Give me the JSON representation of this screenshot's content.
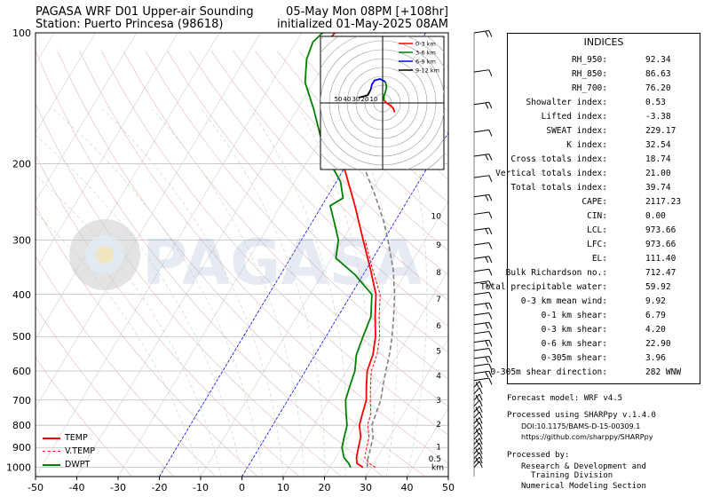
{
  "header": {
    "title_left": "PAGASA WRF D01 Upper-air Sounding",
    "station": "Station: Puerto Princesa (98618)",
    "valid_time": "05-May Mon 08PM [+108hr]",
    "init_time": "initialized 01-May-2025 08AM"
  },
  "watermark": "PAGASA",
  "chart_data": {
    "type": "line",
    "x_ticks": [
      "-50",
      "-40",
      "-30",
      "-20",
      "-10",
      "0",
      "10",
      "20",
      "30",
      "40",
      "50"
    ],
    "xlim": [
      -50,
      50
    ],
    "y_ticks": [
      {
        "p": 100,
        "label": "100"
      },
      {
        "p": 200,
        "label": "200"
      },
      {
        "p": 300,
        "label": "300"
      },
      {
        "p": 400,
        "label": "400"
      },
      {
        "p": 500,
        "label": "500"
      },
      {
        "p": 600,
        "label": "600"
      },
      {
        "p": 700,
        "label": "700"
      },
      {
        "p": 800,
        "label": "800"
      },
      {
        "p": 900,
        "label": "900"
      },
      {
        "p": 1000,
        "label": "1000"
      }
    ],
    "ylim": [
      1050,
      100
    ],
    "y_scale": "log",
    "height_labels": [
      {
        "p": 955,
        "label": "0.5"
      },
      {
        "p": 898,
        "label": "1"
      },
      {
        "p": 795,
        "label": "2"
      },
      {
        "p": 700,
        "label": "3"
      },
      {
        "p": 616,
        "label": "4"
      },
      {
        "p": 540,
        "label": "5"
      },
      {
        "p": 472,
        "label": "6"
      },
      {
        "p": 410,
        "label": "7"
      },
      {
        "p": 356,
        "label": "8"
      },
      {
        "p": 308,
        "label": "9"
      },
      {
        "p": 264,
        "label": "10"
      }
    ],
    "height_unit": "km",
    "series": [
      {
        "name": "TEMP",
        "color": "#ff0000",
        "style": "solid",
        "points": [
          [
            28,
            1000
          ],
          [
            26,
            980
          ],
          [
            25,
            950
          ],
          [
            24,
            900
          ],
          [
            23,
            850
          ],
          [
            21,
            800
          ],
          [
            20,
            750
          ],
          [
            19,
            700
          ],
          [
            17,
            650
          ],
          [
            15,
            600
          ],
          [
            14,
            550
          ],
          [
            12,
            500
          ],
          [
            9,
            450
          ],
          [
            6,
            400
          ],
          [
            1,
            350
          ],
          [
            -5,
            300
          ],
          [
            -12,
            250
          ],
          [
            -21,
            200
          ],
          [
            -27,
            175
          ],
          [
            -33,
            150
          ],
          [
            -38,
            130
          ],
          [
            -41,
            115
          ],
          [
            -43,
            108
          ],
          [
            -42,
            100
          ]
        ]
      },
      {
        "name": "V.TEMP",
        "color": "#ff0000",
        "style": "dashed",
        "points": [
          [
            31,
            1000
          ],
          [
            29,
            980
          ],
          [
            27,
            950
          ],
          [
            26,
            900
          ],
          [
            25,
            850
          ],
          [
            23,
            800
          ],
          [
            22,
            750
          ],
          [
            20,
            700
          ],
          [
            18,
            650
          ],
          [
            16,
            600
          ],
          [
            15,
            550
          ],
          [
            13,
            500
          ],
          [
            10,
            450
          ],
          [
            7,
            400
          ],
          [
            1.5,
            350
          ],
          [
            -4.5,
            300
          ]
        ]
      },
      {
        "name": "DWPT",
        "color": "#008000",
        "style": "solid",
        "points": [
          [
            25,
            1000
          ],
          [
            24,
            980
          ],
          [
            22,
            950
          ],
          [
            20,
            900
          ],
          [
            19,
            850
          ],
          [
            18,
            800
          ],
          [
            16,
            750
          ],
          [
            14,
            700
          ],
          [
            13,
            650
          ],
          [
            12,
            600
          ],
          [
            10,
            550
          ],
          [
            9,
            500
          ],
          [
            8,
            450
          ],
          [
            5,
            400
          ],
          [
            -2,
            360
          ],
          [
            -9,
            330
          ],
          [
            -11,
            300
          ],
          [
            -15,
            270
          ],
          [
            -18,
            250
          ],
          [
            -16,
            240
          ],
          [
            -19,
            220
          ],
          [
            -24,
            200
          ],
          [
            -30,
            175
          ],
          [
            -36,
            150
          ],
          [
            -42,
            130
          ],
          [
            -45,
            115
          ],
          [
            -46,
            105
          ],
          [
            -45,
            100
          ]
        ]
      },
      {
        "name": "parcel",
        "color": "#808080",
        "style": "dashed",
        "points": [
          [
            29,
            1000
          ],
          [
            28,
            960
          ],
          [
            27.5,
            930
          ],
          [
            26,
            850
          ],
          [
            24,
            800
          ],
          [
            22.5,
            700
          ],
          [
            21,
            650
          ],
          [
            19.5,
            600
          ],
          [
            18,
            550
          ],
          [
            16,
            500
          ],
          [
            13.5,
            450
          ],
          [
            10.5,
            400
          ],
          [
            6.5,
            350
          ],
          [
            1,
            300
          ],
          [
            -3,
            270
          ],
          [
            -8,
            240
          ],
          [
            -14,
            210
          ],
          [
            -19,
            190
          ],
          [
            -24,
            170
          ],
          [
            -29,
            150
          ],
          [
            -34,
            130
          ],
          [
            -36,
            120
          ],
          [
            -38,
            110
          ]
        ]
      }
    ]
  },
  "hodograph": {
    "ring_labels": [
      "50",
      "40",
      "30",
      "20",
      "10"
    ],
    "legend": [
      {
        "label": "0-3 km",
        "color": "#ff0000"
      },
      {
        "label": "3-6 km",
        "color": "#008000"
      },
      {
        "label": "6-9 km",
        "color": "#0000ff"
      },
      {
        "label": "9-12 km",
        "color": "#000000"
      }
    ],
    "segments": [
      {
        "color": "#ff0000",
        "points": [
          [
            4.5,
            -3.5
          ],
          [
            4,
            -2
          ],
          [
            3,
            -1
          ],
          [
            1.5,
            0
          ],
          [
            0.5,
            1
          ]
        ]
      },
      {
        "color": "#008000",
        "points": [
          [
            0.5,
            1
          ],
          [
            0.5,
            2.5
          ],
          [
            1,
            4
          ],
          [
            1.5,
            6
          ],
          [
            1,
            8
          ]
        ]
      },
      {
        "color": "#0000ff",
        "points": [
          [
            1,
            8
          ],
          [
            -1,
            9
          ],
          [
            -3,
            8.5
          ],
          [
            -4,
            7
          ],
          [
            -4.5,
            5
          ]
        ]
      },
      {
        "color": "#000000",
        "points": [
          [
            -4.5,
            5
          ],
          [
            -5.5,
            3
          ],
          [
            -7,
            2.5
          ],
          [
            -9,
            2
          ]
        ]
      }
    ]
  },
  "barbs": {
    "count": 40,
    "color": "#000000"
  },
  "indices": {
    "title": "INDICES",
    "rows": [
      {
        "label": "RH_950:",
        "value": "92.34"
      },
      {
        "label": "RH_850:",
        "value": "86.63"
      },
      {
        "label": "RH_700:",
        "value": "76.20"
      },
      {
        "label": "Showalter index:",
        "value": "0.53"
      },
      {
        "label": "Lifted index:",
        "value": "-3.38"
      },
      {
        "label": "SWEAT index:",
        "value": "229.17"
      },
      {
        "label": "K index:",
        "value": "32.54"
      },
      {
        "label": "Cross totals index:",
        "value": "18.74"
      },
      {
        "label": "Vertical totals index:",
        "value": "21.00"
      },
      {
        "label": "Total totals index:",
        "value": "39.74"
      },
      {
        "label": "CAPE:",
        "value": "2117.23"
      },
      {
        "label": "CIN:",
        "value": "0.00"
      },
      {
        "label": "LCL:",
        "value": "973.66"
      },
      {
        "label": "LFC:",
        "value": "973.66"
      },
      {
        "label": "EL:",
        "value": "111.40"
      },
      {
        "label": "Bulk Richardson no.:",
        "value": "712.47"
      },
      {
        "label": "Total precipitable water:",
        "value": "59.92"
      },
      {
        "label": "0-3 km mean wind:",
        "value": "9.92"
      },
      {
        "label": "0-1 km shear:",
        "value": "6.79"
      },
      {
        "label": "0-3 km shear:",
        "value": "4.20"
      },
      {
        "label": "0-6 km shear:",
        "value": "22.90"
      },
      {
        "label": "0-305m shear:",
        "value": "3.96"
      },
      {
        "label": "0-305m shear direction:",
        "value": "282 WNW"
      }
    ]
  },
  "info": {
    "forecast_model": "Forecast model: WRF v4.5",
    "processed_using": "Processed using SHARPpy v.1.4.0",
    "doi": "DOI:10.1175/BAMS-D-15-00309.1",
    "url": "https://github.com/sharppy/SHARPpy",
    "processed_by": "Processed by:",
    "org1": "Research & Development and",
    "org2": "Training Division",
    "org3": "Numerical Modeling Section"
  },
  "legend": [
    {
      "label": "TEMP",
      "color": "#ff0000",
      "style": "solid"
    },
    {
      "label": "V.TEMP",
      "color": "#ff0000",
      "style": "dashed"
    },
    {
      "label": "DWPT",
      "color": "#008000",
      "style": "solid"
    }
  ]
}
